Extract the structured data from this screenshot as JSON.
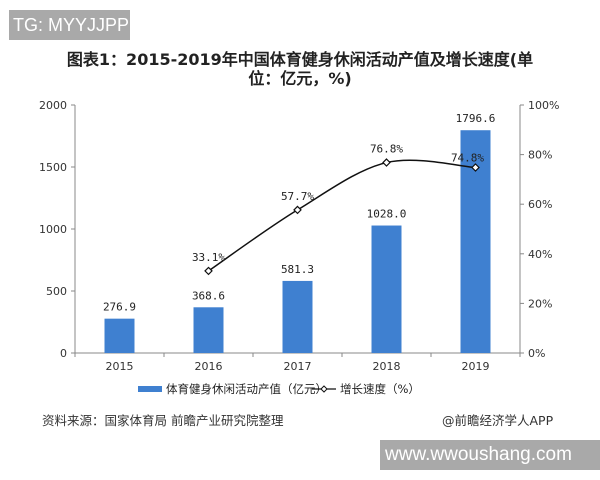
{
  "watermarks": {
    "top_left": "TG: MYYJJPP",
    "bottom_right": "www.wwoushang.com"
  },
  "chart_data": {
    "type": "bar+line",
    "title": "图表1：2015-2019年中国体育健身休闲活动产值及增长速度(单位：亿元，%)",
    "categories": [
      "2015",
      "2016",
      "2017",
      "2018",
      "2019"
    ],
    "left_axis": {
      "ylim": [
        0,
        2000
      ],
      "ticks": [
        "0",
        "500",
        "1000",
        "1500",
        "2000"
      ]
    },
    "right_axis": {
      "ylim": [
        0,
        100
      ],
      "ticks": [
        "0%",
        "20%",
        "40%",
        "60%",
        "80%",
        "100%"
      ]
    },
    "series": [
      {
        "name": "体育健身休闲活动产值（亿元）",
        "type": "bar",
        "axis": "left",
        "color": "#3f80d0",
        "values": [
          276.9,
          368.6,
          581.3,
          1028.0,
          1796.6
        ],
        "labels": [
          "276.9",
          "368.6",
          "581.3",
          "1028.0",
          "1796.6"
        ]
      },
      {
        "name": "增长速度（%）",
        "type": "line",
        "axis": "right",
        "color": "#111111",
        "values": [
          null,
          33.1,
          57.7,
          76.8,
          74.8
        ],
        "labels": [
          "",
          "33.1%",
          "57.7%",
          "76.8%",
          "74.8%"
        ]
      }
    ],
    "grid": false,
    "legend": "bottom"
  },
  "source": "资料来源：国家体育局 前瞻产业研究院整理",
  "credit": "@前瞻经济学人APP"
}
